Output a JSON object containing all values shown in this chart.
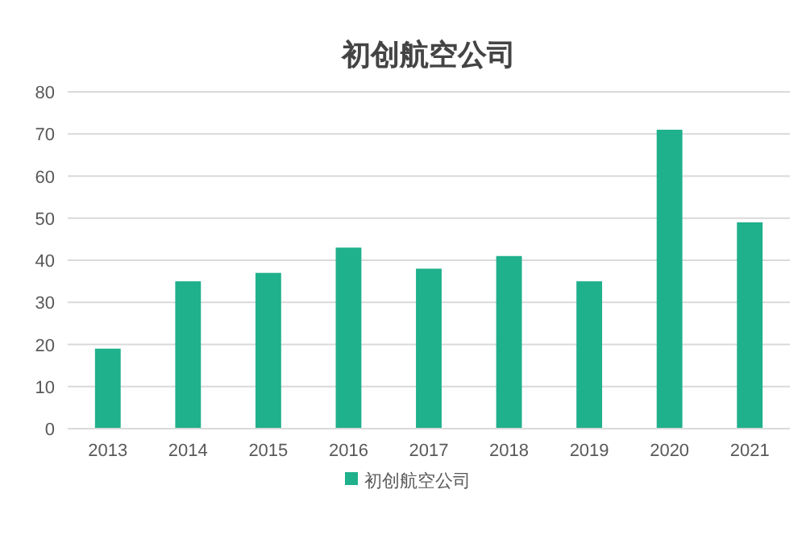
{
  "chart_data": {
    "type": "bar",
    "title": "初创航空公司",
    "categories": [
      "2013",
      "2014",
      "2015",
      "2016",
      "2017",
      "2018",
      "2019",
      "2020",
      "2021"
    ],
    "series": [
      {
        "name": "初创航空公司",
        "color": "#1fb08c",
        "values": [
          19,
          35,
          37,
          43,
          38,
          41,
          35,
          71,
          49
        ]
      }
    ],
    "ylim": [
      0,
      80
    ],
    "yticks": [
      0,
      10,
      20,
      30,
      40,
      50,
      60,
      70,
      80
    ],
    "grid": "y",
    "legend": "bottom"
  }
}
